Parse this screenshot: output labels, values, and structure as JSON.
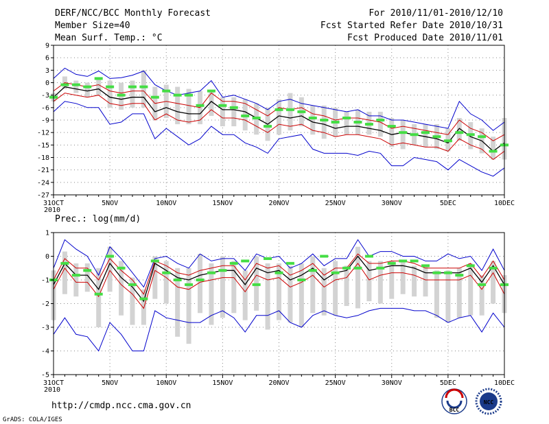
{
  "header": {
    "title": "DERF/NCC/BCC Monthly Forecast",
    "member_size": "Member Size=40",
    "variable": "Mean Surf. Temp.: °C",
    "period": "For 2010/11/01-2010/12/10",
    "fcst_started": "Fcst Started Refer Date 2010/10/31",
    "fcst_produced": "Fcst Produced Date 2010/11/01"
  },
  "footer": {
    "url": "http://cmdp.ncc.cma.gov.cn",
    "credit": "GrADS: COLA/IGES",
    "logo_bcc": "BCC",
    "logo_ncc": "NCC"
  },
  "colors": {
    "mean": "#000000",
    "spread": "#cc0000",
    "envelope": "#0000cc",
    "box": "#d3d3d3",
    "obs": "#44dd44",
    "grid": "#888888"
  },
  "chart_data": [
    {
      "type": "line",
      "title": "Mean Surf. Temp.: °C",
      "xlabel": "",
      "ylabel": "°C",
      "ylim": [
        -27,
        9
      ],
      "yticks": [
        9,
        6,
        3,
        0,
        -3,
        -6,
        -9,
        -12,
        -15,
        -18,
        -21,
        -24,
        -27
      ],
      "x": [
        31,
        32,
        33,
        34,
        35,
        36,
        37,
        38,
        39,
        40,
        41,
        42,
        43,
        44,
        45,
        46,
        47,
        48,
        49,
        50,
        51,
        52,
        53,
        54,
        55,
        56,
        57,
        58,
        59,
        60,
        61,
        62,
        63,
        64,
        65,
        66,
        67,
        68,
        69,
        70,
        71
      ],
      "xlim": [
        31,
        71
      ],
      "xtick_labels": [
        {
          "x": 31,
          "label": "31OCT",
          "sub": "2010"
        },
        {
          "x": 36,
          "label": "5NOV"
        },
        {
          "x": 41,
          "label": "10NOV"
        },
        {
          "x": 46,
          "label": "15NOV"
        },
        {
          "x": 51,
          "label": "20NOV"
        },
        {
          "x": 56,
          "label": "25NOV"
        },
        {
          "x": 61,
          "label": "30NOV"
        },
        {
          "x": 66,
          "label": "5DEC"
        },
        {
          "x": 71,
          "label": "10DEC"
        }
      ],
      "series": [
        {
          "name": "upper",
          "role": "envelope",
          "values": [
            1.0,
            3.5,
            2.0,
            1.5,
            2.8,
            1.0,
            1.2,
            1.8,
            2.8,
            -0.5,
            -2.0,
            -3.0,
            -2.5,
            -2.0,
            0.5,
            -3.5,
            -3.0,
            -4.0,
            -5.0,
            -6.5,
            -4.5,
            -4.0,
            -5.0,
            -5.5,
            -6.0,
            -6.5,
            -7.0,
            -6.5,
            -8.0,
            -8.0,
            -9.0,
            -9.0,
            -9.5,
            -10.0,
            -10.5,
            -11.0,
            -4.5,
            -7.5,
            -9.0,
            -11.5,
            -9.5
          ]
        },
        {
          "name": "upper_spread",
          "role": "spread",
          "values": [
            -2.0,
            0.0,
            -0.5,
            -1.0,
            -0.5,
            -2.0,
            -2.5,
            -2.0,
            -2.0,
            -5.0,
            -4.5,
            -5.0,
            -5.5,
            -6.0,
            -2.5,
            -4.5,
            -4.5,
            -5.0,
            -6.5,
            -8.0,
            -6.0,
            -6.5,
            -6.0,
            -7.5,
            -8.0,
            -9.0,
            -8.5,
            -8.5,
            -9.0,
            -9.5,
            -11.0,
            -10.5,
            -11.0,
            -11.5,
            -12.0,
            -12.5,
            -9.0,
            -11.0,
            -12.0,
            -14.0,
            -12.5
          ]
        },
        {
          "name": "ensemble_mean",
          "role": "mean",
          "values": [
            -3.5,
            -1.0,
            -1.5,
            -2.0,
            -1.5,
            -3.5,
            -4.0,
            -3.5,
            -3.5,
            -7.0,
            -6.0,
            -7.0,
            -7.5,
            -7.5,
            -4.5,
            -6.5,
            -6.5,
            -7.0,
            -8.5,
            -10.0,
            -8.0,
            -8.5,
            -8.0,
            -9.5,
            -10.0,
            -11.0,
            -10.5,
            -10.5,
            -11.0,
            -11.5,
            -12.5,
            -12.0,
            -12.5,
            -13.0,
            -13.5,
            -14.5,
            -11.0,
            -13.0,
            -14.0,
            -16.5,
            -14.5
          ]
        },
        {
          "name": "lower_spread",
          "role": "spread",
          "values": [
            -4.5,
            -2.5,
            -3.0,
            -3.5,
            -3.0,
            -5.0,
            -5.5,
            -5.0,
            -5.0,
            -9.0,
            -7.5,
            -9.0,
            -9.5,
            -9.0,
            -6.5,
            -8.5,
            -8.5,
            -9.0,
            -10.5,
            -12.0,
            -10.0,
            -10.5,
            -10.0,
            -11.5,
            -12.0,
            -13.0,
            -12.5,
            -12.5,
            -13.0,
            -13.5,
            -15.0,
            -14.5,
            -15.0,
            -15.5,
            -15.5,
            -16.5,
            -13.5,
            -15.0,
            -16.0,
            -18.5,
            -16.5
          ]
        },
        {
          "name": "lower",
          "role": "envelope",
          "values": [
            -7.0,
            -4.5,
            -5.0,
            -6.0,
            -6.0,
            -10.0,
            -9.5,
            -7.5,
            -7.5,
            -13.5,
            -11.0,
            -13.0,
            -15.0,
            -13.5,
            -10.5,
            -12.5,
            -12.5,
            -14.5,
            -15.5,
            -17.0,
            -13.5,
            -13.0,
            -12.5,
            -16.0,
            -17.0,
            -17.0,
            -17.0,
            -17.5,
            -16.5,
            -17.0,
            -20.0,
            -20.0,
            -18.0,
            -18.5,
            -19.0,
            -21.0,
            -18.5,
            -20.0,
            -21.5,
            -22.5,
            -20.5
          ]
        }
      ],
      "boxes": [
        [
          -4.5,
          -2.5
        ],
        [
          -1.5,
          1.5
        ],
        [
          -2.5,
          0.5
        ],
        [
          -3.5,
          0.0
        ],
        [
          -3.0,
          1.0
        ],
        [
          -6.0,
          0.5
        ],
        [
          -6.5,
          0.0
        ],
        [
          -6.0,
          0.5
        ],
        [
          -6.0,
          3.0
        ],
        [
          -9.0,
          -1.0
        ],
        [
          -8.5,
          -0.5
        ],
        [
          -10.0,
          -1.0
        ],
        [
          -10.0,
          -1.5
        ],
        [
          -10.0,
          -2.0
        ],
        [
          -8.0,
          -2.0
        ],
        [
          -10.5,
          -3.5
        ],
        [
          -10.5,
          -3.5
        ],
        [
          -11.5,
          -4.0
        ],
        [
          -12.5,
          -5.0
        ],
        [
          -14.0,
          -6.0
        ],
        [
          -12.5,
          -4.0
        ],
        [
          -11.5,
          -2.5
        ],
        [
          -10.5,
          -3.5
        ],
        [
          -12.5,
          -5.5
        ],
        [
          -13.5,
          -5.5
        ],
        [
          -13.0,
          -6.0
        ],
        [
          -12.5,
          -7.0
        ],
        [
          -12.5,
          -6.5
        ],
        [
          -12.5,
          -7.0
        ],
        [
          -13.0,
          -7.0
        ],
        [
          -15.5,
          -8.5
        ],
        [
          -16.0,
          -9.0
        ],
        [
          -15.0,
          -10.0
        ],
        [
          -15.5,
          -10.0
        ],
        [
          -16.0,
          -10.0
        ],
        [
          -16.5,
          -11.0
        ],
        [
          -14.0,
          -8.5
        ],
        [
          -16.0,
          -9.5
        ],
        [
          -17.0,
          -11.0
        ],
        [
          -18.5,
          -13.0
        ],
        [
          -18.5,
          -8.5
        ]
      ],
      "observed": [
        -3.5,
        -0.5,
        -0.5,
        -1.0,
        1.0,
        -1.0,
        -3.0,
        -1.0,
        -1.0,
        -3.5,
        -2.0,
        -3.0,
        -3.0,
        -5.5,
        -2.0,
        -5.5,
        -6.0,
        -8.0,
        -8.5,
        -10.5,
        -6.5,
        -6.5,
        -7.0,
        -8.5,
        -9.0,
        -9.5,
        -8.5,
        -9.5,
        -10.0,
        -9.0,
        -10.5,
        -12.0,
        -12.5,
        -12.0,
        -13.0,
        -14.0,
        -12.0,
        -12.5,
        -13.0,
        -16.5,
        -15.0
      ]
    },
    {
      "type": "line",
      "title": "Prec.: log(mm/d)",
      "xlabel": "",
      "ylabel": "log(mm/d)",
      "ylim": [
        -5,
        1
      ],
      "yticks": [
        1,
        0,
        -1,
        -2,
        -3,
        -4,
        -5
      ],
      "x": [
        31,
        32,
        33,
        34,
        35,
        36,
        37,
        38,
        39,
        40,
        41,
        42,
        43,
        44,
        45,
        46,
        47,
        48,
        49,
        50,
        51,
        52,
        53,
        54,
        55,
        56,
        57,
        58,
        59,
        60,
        61,
        62,
        63,
        64,
        65,
        66,
        67,
        68,
        69,
        70,
        71
      ],
      "xlim": [
        31,
        71
      ],
      "xtick_labels": [
        {
          "x": 31,
          "label": "31OCT",
          "sub": "2010"
        },
        {
          "x": 36,
          "label": "5NOV"
        },
        {
          "x": 41,
          "label": "10NOV"
        },
        {
          "x": 46,
          "label": "15NOV"
        },
        {
          "x": 51,
          "label": "20NOV"
        },
        {
          "x": 56,
          "label": "25NOV"
        },
        {
          "x": 61,
          "label": "30NOV"
        },
        {
          "x": 66,
          "label": "5DEC"
        },
        {
          "x": 71,
          "label": "10DEC"
        }
      ],
      "series": [
        {
          "name": "upper",
          "role": "envelope",
          "values": [
            -0.5,
            0.7,
            0.3,
            0.0,
            -0.8,
            0.4,
            -0.1,
            -0.7,
            -1.3,
            -0.1,
            0.0,
            -0.3,
            -0.5,
            0.1,
            -0.2,
            -0.1,
            -0.1,
            -0.6,
            0.1,
            -0.1,
            0.0,
            -0.5,
            -0.3,
            0.1,
            -0.4,
            -0.1,
            -0.1,
            0.7,
            0.0,
            0.2,
            0.2,
            0.0,
            0.0,
            -0.2,
            -0.2,
            0.1,
            -0.1,
            0.0,
            -0.6,
            0.3,
            -0.6
          ]
        },
        {
          "name": "upper_spread",
          "role": "spread",
          "values": [
            -1.0,
            -0.1,
            -0.5,
            -0.5,
            -1.0,
            -0.1,
            -0.6,
            -1.0,
            -1.6,
            -0.2,
            -0.4,
            -0.7,
            -0.8,
            -0.6,
            -0.5,
            -0.4,
            -0.4,
            -1.0,
            -0.3,
            -0.5,
            -0.4,
            -0.8,
            -0.6,
            -0.3,
            -0.8,
            -0.5,
            -0.5,
            0.1,
            -0.3,
            -0.3,
            -0.2,
            -0.2,
            -0.3,
            -0.5,
            -0.5,
            -0.5,
            -0.5,
            -0.3,
            -0.9,
            -0.2,
            -1.0
          ]
        },
        {
          "name": "ensemble_mean",
          "role": "mean",
          "values": [
            -1.2,
            -0.3,
            -0.8,
            -0.8,
            -1.4,
            -0.3,
            -0.9,
            -1.3,
            -1.9,
            -0.3,
            -0.6,
            -0.9,
            -1.0,
            -0.8,
            -0.7,
            -0.6,
            -0.6,
            -1.2,
            -0.5,
            -0.7,
            -0.6,
            -1.0,
            -0.8,
            -0.5,
            -1.0,
            -0.7,
            -0.6,
            0.0,
            -0.6,
            -0.5,
            -0.4,
            -0.4,
            -0.5,
            -0.7,
            -0.7,
            -0.7,
            -0.7,
            -0.5,
            -1.1,
            -0.4,
            -1.2
          ]
        },
        {
          "name": "lower_spread",
          "role": "spread",
          "values": [
            -1.4,
            -0.5,
            -1.1,
            -1.1,
            -1.7,
            -0.6,
            -1.2,
            -1.6,
            -2.2,
            -0.6,
            -0.9,
            -1.3,
            -1.4,
            -1.1,
            -1.0,
            -0.9,
            -0.9,
            -1.5,
            -0.8,
            -1.0,
            -0.9,
            -1.3,
            -1.1,
            -0.8,
            -1.3,
            -1.0,
            -0.9,
            -0.3,
            -1.0,
            -0.8,
            -0.7,
            -0.7,
            -0.8,
            -1.0,
            -1.0,
            -1.0,
            -1.0,
            -0.8,
            -1.4,
            -0.7,
            -1.6
          ]
        },
        {
          "name": "lower",
          "role": "envelope",
          "values": [
            -3.3,
            -2.6,
            -3.3,
            -3.4,
            -4.0,
            -2.8,
            -3.3,
            -4.0,
            -4.0,
            -2.3,
            -2.6,
            -2.7,
            -2.8,
            -2.8,
            -2.5,
            -2.3,
            -2.6,
            -3.2,
            -2.5,
            -2.5,
            -2.3,
            -2.8,
            -3.0,
            -2.5,
            -2.3,
            -2.5,
            -2.6,
            -2.5,
            -2.3,
            -2.2,
            -2.2,
            -2.2,
            -2.3,
            -2.3,
            -2.5,
            -2.8,
            -2.6,
            -2.5,
            -3.2,
            -2.4,
            -3.0
          ]
        }
      ],
      "boxes": [
        [
          -2.7,
          -0.6
        ],
        [
          -1.6,
          0.2
        ],
        [
          -1.7,
          -0.3
        ],
        [
          -1.5,
          -0.3
        ],
        [
          -3.0,
          -0.5
        ],
        [
          -1.5,
          0.4
        ],
        [
          -2.5,
          -0.2
        ],
        [
          -2.9,
          -0.9
        ],
        [
          -2.9,
          -1.4
        ],
        [
          -1.8,
          0.0
        ],
        [
          -2.0,
          -0.2
        ],
        [
          -3.4,
          -0.5
        ],
        [
          -3.7,
          -0.5
        ],
        [
          -2.4,
          0.1
        ],
        [
          -2.9,
          -0.3
        ],
        [
          -2.6,
          0.0
        ],
        [
          -2.4,
          -0.2
        ],
        [
          -2.7,
          -0.6
        ],
        [
          -2.3,
          0.0
        ],
        [
          -3.1,
          -0.3
        ],
        [
          -2.7,
          -0.3
        ],
        [
          -2.8,
          -0.4
        ],
        [
          -3.0,
          -0.3
        ],
        [
          -2.4,
          0.0
        ],
        [
          -2.5,
          -0.5
        ],
        [
          -2.5,
          -0.2
        ],
        [
          -2.1,
          -0.4
        ],
        [
          -2.2,
          0.4
        ],
        [
          -1.9,
          -0.2
        ],
        [
          -2.0,
          -0.2
        ],
        [
          -1.8,
          -0.2
        ],
        [
          -1.6,
          -0.2
        ],
        [
          -1.7,
          -0.4
        ],
        [
          -1.7,
          -0.4
        ],
        [
          -2.6,
          -0.6
        ],
        [
          -2.8,
          -0.6
        ],
        [
          -2.6,
          -0.5
        ],
        [
          -2.5,
          -0.3
        ],
        [
          -2.5,
          -0.8
        ],
        [
          -2.0,
          -0.2
        ],
        [
          -2.4,
          -0.8
        ]
      ],
      "observed": [
        -1.0,
        -0.3,
        -0.8,
        -0.6,
        -1.6,
        -0.0,
        -0.5,
        -1.2,
        -1.8,
        -0.2,
        -0.7,
        -1.0,
        -1.2,
        -1.0,
        -0.7,
        -0.6,
        -0.3,
        -0.2,
        -1.2,
        -0.1,
        -0.7,
        -0.3,
        -1.0,
        -0.6,
        -0.0,
        -0.7,
        -0.5,
        -0.5,
        0.0,
        -0.5,
        -0.3,
        -0.2,
        -0.2,
        -0.4,
        -0.7,
        -0.7,
        -0.8,
        -0.4,
        -1.2,
        -0.5,
        -1.2
      ]
    }
  ]
}
